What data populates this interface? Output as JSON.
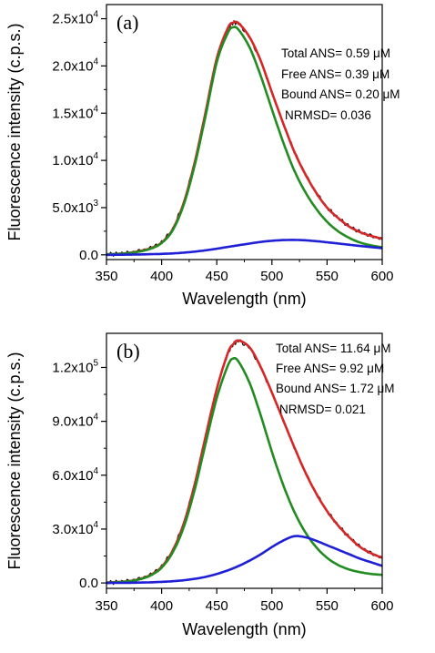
{
  "chart_data": [
    {
      "type": "line",
      "panel_label": "(a)",
      "xlabel": "Wavelength (nm)",
      "ylabel": "Fluorescence intensity (c.p.s.)",
      "xlim": [
        350,
        600
      ],
      "ylim": [
        -500,
        26500
      ],
      "x_ticks": [
        350,
        400,
        450,
        500,
        550,
        600
      ],
      "x_tick_labels": [
        "350",
        "400",
        "450",
        "500",
        "550",
        "600"
      ],
      "y_ticks": [
        0,
        5000,
        10000,
        15000,
        20000,
        25000
      ],
      "y_tick_labels": [
        {
          "mant": "0.0",
          "exp": ""
        },
        {
          "mant": "5.0x10",
          "exp": "3"
        },
        {
          "mant": "1.0x10",
          "exp": "4"
        },
        {
          "mant": "1.5x10",
          "exp": "4"
        },
        {
          "mant": "2.0x10",
          "exp": "4"
        },
        {
          "mant": "2.5x10",
          "exp": "4"
        }
      ],
      "annotations": [
        "Total ANS= 0.59 μM",
        "Free ANS= 0.39 μM",
        "Bound ANS= 0.20 μM",
        "NRMSD= 0.036"
      ],
      "x": [
        350,
        360,
        370,
        380,
        390,
        400,
        410,
        420,
        430,
        440,
        450,
        460,
        465,
        470,
        480,
        490,
        500,
        510,
        520,
        530,
        540,
        550,
        560,
        570,
        580,
        590,
        600
      ],
      "series": [
        {
          "color": "#000000",
          "noise": 1,
          "values": [
            50,
            100,
            200,
            400,
            700,
            1300,
            2700,
            5500,
            9800,
            15200,
            20800,
            24000,
            24600,
            24500,
            23000,
            20500,
            17200,
            14000,
            11000,
            8600,
            6600,
            5000,
            3900,
            3000,
            2400,
            2000,
            1700
          ]
        },
        {
          "color": "#d62728",
          "values": [
            50,
            100,
            200,
            400,
            700,
            1300,
            2700,
            5500,
            9800,
            15200,
            20800,
            24000,
            24600,
            24500,
            23000,
            20500,
            17200,
            14000,
            11000,
            8600,
            6600,
            5000,
            3900,
            3000,
            2400,
            2000,
            1700
          ]
        },
        {
          "color": "#228b22",
          "values": [
            50,
            90,
            180,
            350,
            650,
            1250,
            2600,
            5300,
            9500,
            14800,
            20400,
            23500,
            24100,
            23800,
            21900,
            18900,
            15400,
            12000,
            9000,
            6700,
            4900,
            3500,
            2500,
            1800,
            1300,
            1000,
            800
          ]
        },
        {
          "color": "#1f1fd6",
          "values": [
            0,
            10,
            20,
            40,
            70,
            100,
            150,
            230,
            340,
            480,
            650,
            840,
            930,
            1020,
            1200,
            1370,
            1490,
            1560,
            1580,
            1540,
            1450,
            1330,
            1200,
            1070,
            940,
            820,
            710
          ]
        }
      ]
    },
    {
      "type": "line",
      "panel_label": "(b)",
      "xlabel": "Wavelength (nm)",
      "ylabel": "Fluorescence intensity (c.p.s.)",
      "xlim": [
        350,
        600
      ],
      "ylim": [
        -3000,
        139000
      ],
      "x_ticks": [
        350,
        400,
        450,
        500,
        550,
        600
      ],
      "x_tick_labels": [
        "350",
        "400",
        "450",
        "500",
        "550",
        "600"
      ],
      "y_ticks": [
        0,
        30000,
        60000,
        90000,
        120000
      ],
      "y_tick_labels": [
        {
          "mant": "0.0",
          "exp": ""
        },
        {
          "mant": "3.0x10",
          "exp": "4"
        },
        {
          "mant": "6.0x10",
          "exp": "4"
        },
        {
          "mant": "9.0x10",
          "exp": "4"
        },
        {
          "mant": "1.2x10",
          "exp": "5"
        }
      ],
      "annotations": [
        "Total ANS= 11.64 μM",
        "Free ANS= 9.92 μM",
        "Bound ANS= 1.72 μM",
        "NRMSD= 0.021"
      ],
      "x": [
        350,
        360,
        370,
        380,
        390,
        400,
        410,
        420,
        430,
        440,
        450,
        460,
        465,
        470,
        480,
        490,
        500,
        510,
        520,
        530,
        540,
        550,
        560,
        570,
        580,
        590,
        600
      ],
      "series": [
        {
          "color": "#000000",
          "noise": 1,
          "values": [
            200,
            500,
            1000,
            2200,
            4500,
            9000,
            18000,
            33000,
            55000,
            82000,
            108000,
            128000,
            133000,
            135000,
            131000,
            120000,
            106000,
            91000,
            76000,
            62000,
            50000,
            40000,
            32000,
            25500,
            20000,
            16500,
            14000
          ]
        },
        {
          "color": "#d62728",
          "values": [
            200,
            500,
            1000,
            2200,
            4500,
            9000,
            18000,
            33000,
            55000,
            82000,
            108000,
            128000,
            133000,
            135000,
            131000,
            120000,
            106000,
            91000,
            76000,
            62000,
            50000,
            40000,
            32000,
            25500,
            20000,
            16500,
            14000
          ]
        },
        {
          "color": "#228b22",
          "values": [
            150,
            400,
            900,
            2000,
            4200,
            8500,
            17000,
            31000,
            52000,
            78000,
            103000,
            121000,
            125000,
            123000,
            111000,
            93000,
            73000,
            55000,
            40000,
            28500,
            20000,
            14000,
            10000,
            7500,
            6000,
            5000,
            4500
          ]
        },
        {
          "color": "#1f1fd6",
          "values": [
            0,
            50,
            100,
            200,
            350,
            600,
            950,
            1500,
            2300,
            3400,
            5000,
            7000,
            8200,
            9500,
            12500,
            16000,
            20000,
            23500,
            26000,
            25500,
            23500,
            21000,
            18500,
            16000,
            13500,
            11500,
            9500
          ]
        }
      ]
    }
  ]
}
